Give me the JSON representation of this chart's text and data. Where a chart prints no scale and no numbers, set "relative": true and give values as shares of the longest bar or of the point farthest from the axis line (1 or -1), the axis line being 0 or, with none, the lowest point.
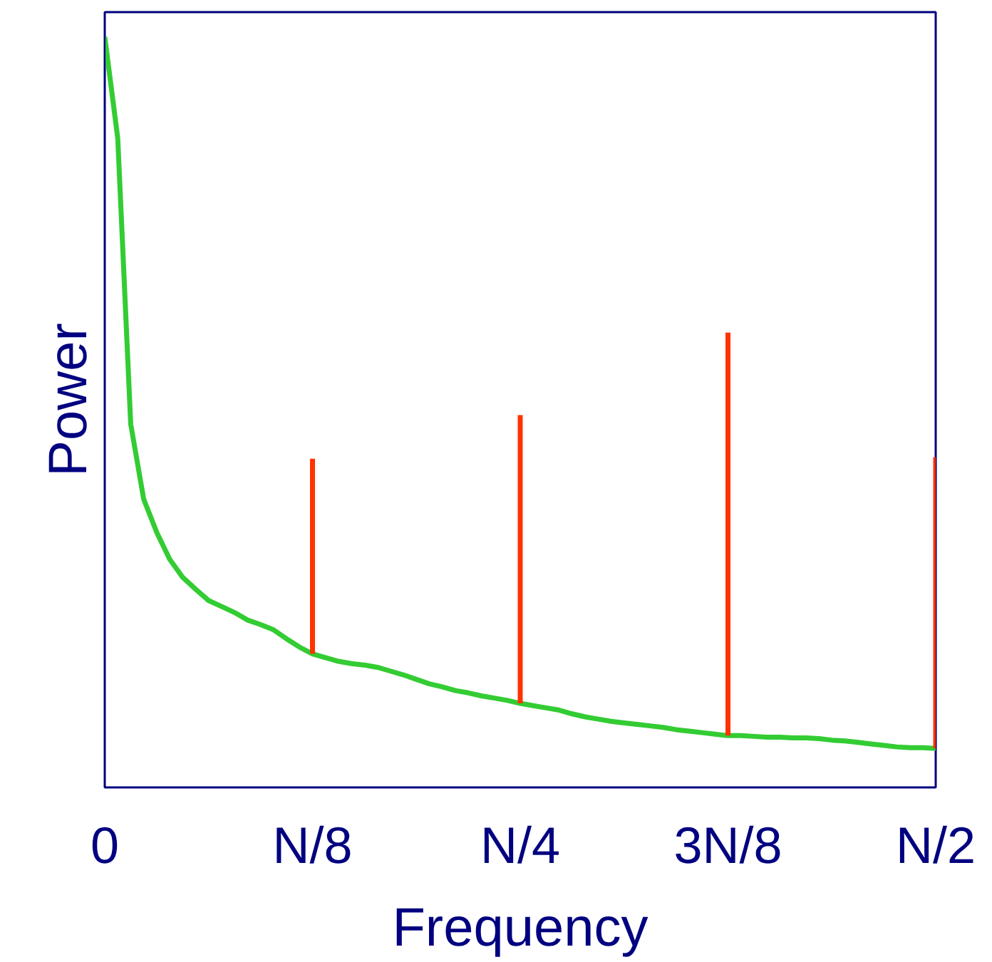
{
  "chart_data": {
    "type": "line",
    "xlabel": "Frequency",
    "ylabel": "Power",
    "relative": true,
    "grid": false,
    "tick_labels": "x",
    "categories": [
      "0",
      null,
      null,
      null,
      null,
      null,
      null,
      null,
      null,
      null,
      null,
      null,
      null,
      null,
      null,
      null,
      "N/8",
      null,
      null,
      null,
      null,
      null,
      null,
      null,
      null,
      null,
      null,
      null,
      null,
      null,
      null,
      null,
      "N/4",
      null,
      null,
      null,
      null,
      null,
      null,
      null,
      null,
      null,
      null,
      null,
      null,
      null,
      null,
      null,
      "3N/8",
      null,
      null,
      null,
      null,
      null,
      null,
      null,
      null,
      null,
      null,
      null,
      null,
      null,
      null,
      null,
      "N/2"
    ],
    "series": [
      {
        "color": "#33cc33",
        "values": [
          1.0,
          0.865,
          0.484,
          0.384,
          0.34,
          0.304,
          0.28,
          0.264,
          0.249,
          0.241,
          0.233,
          0.223,
          0.217,
          0.21,
          0.198,
          0.187,
          0.178,
          0.173,
          0.168,
          0.165,
          0.163,
          0.16,
          0.155,
          0.15,
          0.144,
          0.138,
          0.134,
          0.129,
          0.126,
          0.122,
          0.119,
          0.116,
          0.112,
          0.109,
          0.106,
          0.103,
          0.098,
          0.094,
          0.091,
          0.088,
          0.086,
          0.084,
          0.082,
          0.08,
          0.077,
          0.075,
          0.073,
          0.071,
          0.069,
          0.069,
          0.068,
          0.067,
          0.067,
          0.066,
          0.066,
          0.065,
          0.063,
          0.062,
          0.06,
          0.058,
          0.056,
          0.054,
          0.053,
          0.053,
          0.052
        ]
      },
      {
        "type": "line",
        "color": "#ff3300",
        "x": [
          "N/8",
          "N/8"
        ],
        "values": [
          0.178,
          0.438
        ]
      },
      {
        "type": "line",
        "color": "#ff3300",
        "x": [
          "N/4",
          "N/4"
        ],
        "values": [
          0.112,
          0.496
        ]
      },
      {
        "type": "line",
        "color": "#ff3300",
        "x": [
          "3N/8",
          "3N/8"
        ],
        "values": [
          0.069,
          0.606
        ]
      },
      {
        "type": "line",
        "color": "#ff3300",
        "x": [
          "N/2",
          "N/2"
        ],
        "values": [
          0.052,
          0.44
        ]
      }
    ]
  }
}
